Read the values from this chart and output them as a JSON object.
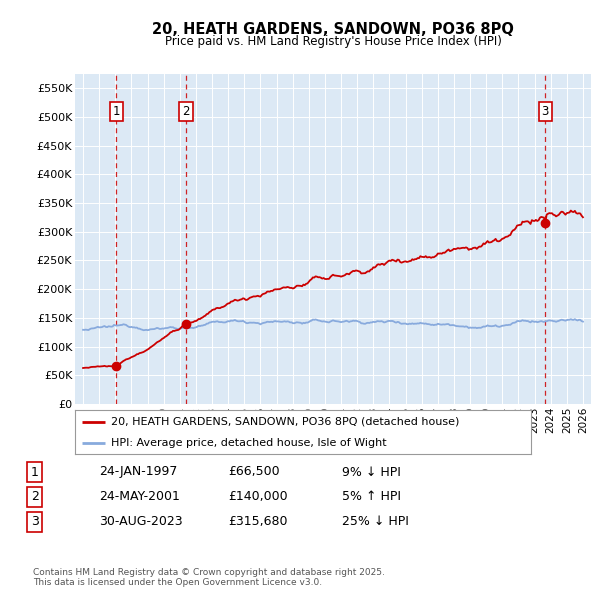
{
  "title": "20, HEATH GARDENS, SANDOWN, PO36 8PQ",
  "subtitle": "Price paid vs. HM Land Registry's House Price Index (HPI)",
  "background_color": "#ffffff",
  "plot_bg_color": "#dce9f5",
  "grid_color": "#ffffff",
  "ylim": [
    0,
    575000
  ],
  "yticks": [
    0,
    50000,
    100000,
    150000,
    200000,
    250000,
    300000,
    350000,
    400000,
    450000,
    500000,
    550000
  ],
  "ytick_labels": [
    "£0",
    "£50K",
    "£100K",
    "£150K",
    "£200K",
    "£250K",
    "£300K",
    "£350K",
    "£400K",
    "£450K",
    "£500K",
    "£550K"
  ],
  "sale_dates_num": [
    1997.07,
    2001.39,
    2023.66
  ],
  "sale_prices": [
    66500,
    140000,
    315680
  ],
  "sale_labels": [
    "1",
    "2",
    "3"
  ],
  "red_line_color": "#cc0000",
  "blue_line_color": "#88aadd",
  "dashed_line_color": "#cc0000",
  "marker_color": "#cc0000",
  "legend_label_red": "20, HEATH GARDENS, SANDOWN, PO36 8PQ (detached house)",
  "legend_label_blue": "HPI: Average price, detached house, Isle of Wight",
  "table_rows": [
    [
      "1",
      "24-JAN-1997",
      "£66,500",
      "9% ↓ HPI"
    ],
    [
      "2",
      "24-MAY-2001",
      "£140,000",
      "5% ↑ HPI"
    ],
    [
      "3",
      "30-AUG-2023",
      "£315,680",
      "25% ↓ HPI"
    ]
  ],
  "footer": "Contains HM Land Registry data © Crown copyright and database right 2025.\nThis data is licensed under the Open Government Licence v3.0.",
  "xmin": 1994.5,
  "xmax": 2026.5
}
